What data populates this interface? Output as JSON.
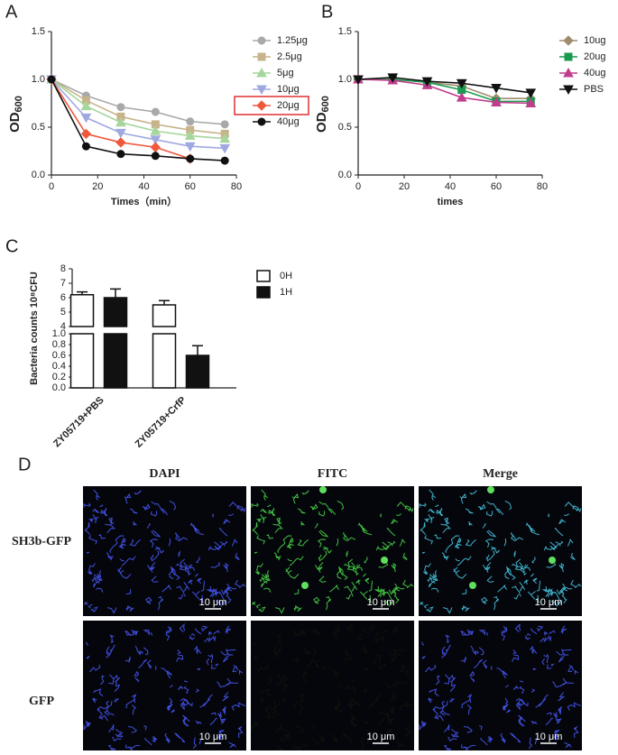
{
  "chart_data": [
    {
      "type": "line",
      "panel": "A",
      "xlabel": "Times（min）",
      "ylabel": "OD",
      "ylabel_sub": "600",
      "x": [
        0,
        15,
        30,
        45,
        60,
        75
      ],
      "xlim": [
        0,
        80
      ],
      "xticks": [
        0,
        20,
        40,
        60,
        80
      ],
      "ylim": [
        0,
        1.5
      ],
      "yticks": [
        {
          "value": 0,
          "label": "0.0"
        },
        {
          "value": 0.5,
          "label": "0.5"
        },
        {
          "value": 1,
          "label": "1.0"
        },
        {
          "value": 1.5,
          "label": "1.5"
        }
      ],
      "series": [
        {
          "name": "1.25μg",
          "color": "#a9a9a9",
          "marker": "circle",
          "values": [
            1.0,
            0.83,
            0.71,
            0.66,
            0.56,
            0.53
          ]
        },
        {
          "name": "2.5μg",
          "color": "#c8b48c",
          "marker": "square",
          "values": [
            1.0,
            0.78,
            0.61,
            0.53,
            0.47,
            0.43
          ]
        },
        {
          "name": "5μg",
          "color": "#a6d69c",
          "marker": "triangle",
          "values": [
            1.0,
            0.72,
            0.55,
            0.46,
            0.41,
            0.38
          ]
        },
        {
          "name": "10μg",
          "color": "#a0a8e0",
          "marker": "down-triangle",
          "values": [
            1.0,
            0.6,
            0.44,
            0.37,
            0.3,
            0.28
          ]
        },
        {
          "name": "20μg",
          "color": "#f0583c",
          "marker": "diamond",
          "highlight": true,
          "values": [
            1.0,
            0.43,
            0.34,
            0.29,
            0.17,
            null
          ]
        },
        {
          "name": "40μg",
          "color": "#111111",
          "marker": "circle",
          "values": [
            1.0,
            0.3,
            0.22,
            0.2,
            0.17,
            0.15
          ]
        }
      ]
    },
    {
      "type": "line",
      "panel": "B",
      "xlabel": "times",
      "ylabel": "OD",
      "ylabel_sub": "600",
      "x": [
        0,
        15,
        30,
        45,
        60,
        75
      ],
      "xlim": [
        0,
        80
      ],
      "xticks": [
        0,
        20,
        40,
        60,
        80
      ],
      "ylim": [
        0,
        1.5
      ],
      "yticks": [
        {
          "value": 0,
          "label": "0.0"
        },
        {
          "value": 0.5,
          "label": "0.5"
        },
        {
          "value": 1,
          "label": "1.0"
        },
        {
          "value": 1.5,
          "label": "1.5"
        }
      ],
      "series": [
        {
          "name": "10ug",
          "color": "#a08c6c",
          "marker": "diamond",
          "values": [
            1.0,
            1.0,
            0.97,
            0.93,
            0.8,
            0.8
          ]
        },
        {
          "name": "20ug",
          "color": "#1a9a50",
          "marker": "square",
          "values": [
            1.0,
            1.0,
            0.97,
            0.89,
            0.77,
            0.77
          ]
        },
        {
          "name": "40ug",
          "color": "#c03c8c",
          "marker": "triangle",
          "values": [
            1.0,
            0.99,
            0.94,
            0.81,
            0.76,
            0.75
          ]
        },
        {
          "name": "PBS",
          "color": "#111111",
          "marker": "down-triangle",
          "values": [
            1.0,
            1.02,
            0.98,
            0.96,
            0.91,
            0.86
          ]
        }
      ]
    },
    {
      "type": "broken-bar",
      "panel": "C",
      "ylabel": "Bacteria counts 10⁸CFU",
      "categories": [
        "ZY05719+PBS",
        "ZY05719+CrfP"
      ],
      "ylim": [
        0,
        8
      ],
      "ybreak": [
        1,
        4
      ],
      "yticks": [
        {
          "value": 0,
          "label": "0.0"
        },
        {
          "value": 0.2,
          "label": "0.2"
        },
        {
          "value": 0.4,
          "label": "0.4"
        },
        {
          "value": 0.6,
          "label": "0.6"
        },
        {
          "value": 0.8,
          "label": "0.8"
        },
        {
          "value": 1,
          "label": "1.0"
        },
        4,
        5,
        6,
        7,
        8
      ],
      "series": [
        {
          "name": "0H",
          "color": "#ffffff",
          "values": [
            6.2,
            5.5
          ],
          "errors": [
            0.2,
            0.3
          ]
        },
        {
          "name": "1H",
          "color": "#111111",
          "values": [
            6.0,
            0.6
          ],
          "errors": [
            0.6,
            0.18
          ]
        }
      ]
    }
  ],
  "panel_d": {
    "label": "D",
    "columns": [
      "DAPI",
      "FITC",
      "Merge"
    ],
    "rows": [
      "SH3b-GFP",
      "GFP"
    ],
    "scale_bar": "10 μm"
  }
}
